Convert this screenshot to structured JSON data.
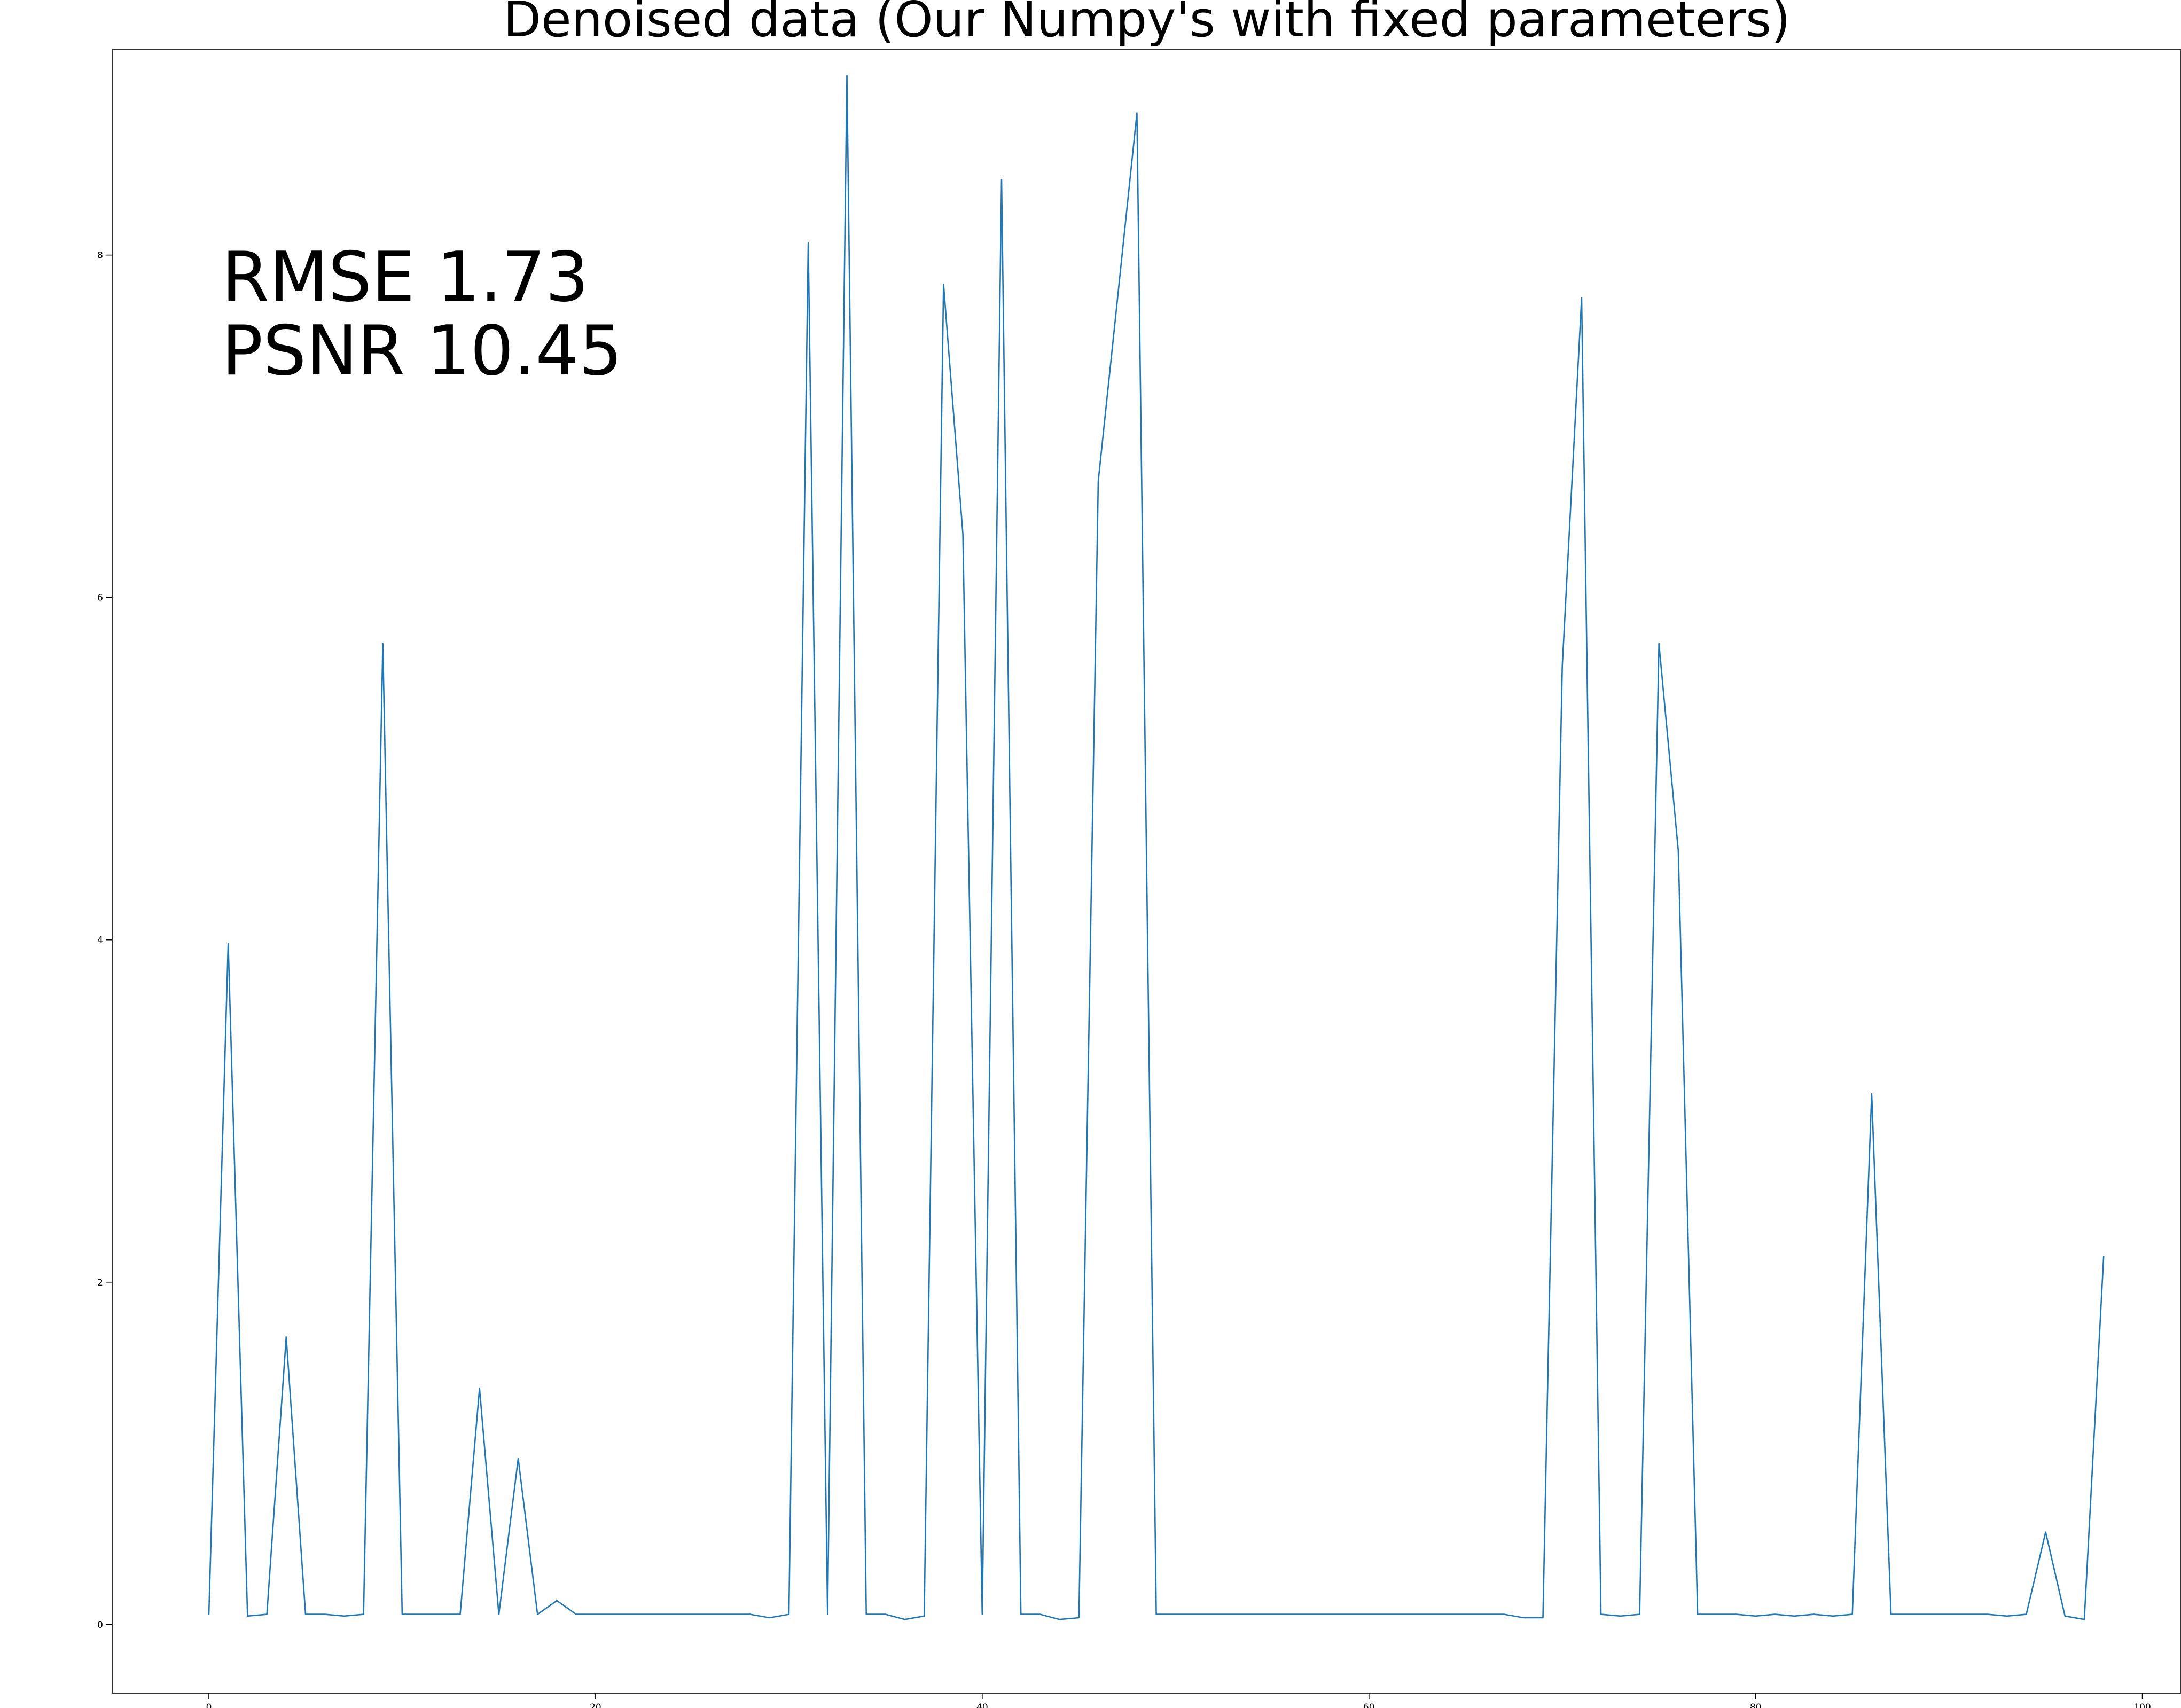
{
  "chart_data": {
    "type": "line",
    "title": "Denoised data (Our Numpy's with fixed parameters)",
    "xlabel": "",
    "ylabel": "",
    "xlim": [
      -5,
      102
    ],
    "ylim": [
      -0.4,
      9.2
    ],
    "xticks": [
      0,
      20,
      40,
      60,
      80,
      100
    ],
    "yticks": [
      0,
      2,
      4,
      6,
      8
    ],
    "grid": false,
    "legend": "none",
    "annotations": [
      {
        "text": "RMSE 1.73"
      },
      {
        "text": "PSNR 10.45"
      }
    ],
    "series": [
      {
        "color": "#1f77b4",
        "x": [
          0,
          1,
          2,
          3,
          4,
          5,
          6,
          7,
          8,
          9,
          10,
          11,
          12,
          13,
          14,
          15,
          16,
          17,
          18,
          19,
          20,
          21,
          22,
          23,
          24,
          25,
          26,
          27,
          28,
          29,
          30,
          31,
          32,
          33,
          34,
          35,
          36,
          37,
          38,
          39,
          40,
          41,
          42,
          43,
          44,
          45,
          46,
          47,
          48,
          49,
          50,
          51,
          52,
          53,
          54,
          55,
          56,
          57,
          58,
          59,
          60,
          61,
          62,
          63,
          64,
          65,
          66,
          67,
          68,
          69,
          70,
          71,
          72,
          73,
          74,
          75,
          76,
          77,
          78,
          79,
          80,
          81,
          82,
          83,
          84,
          85,
          86,
          87,
          88,
          89,
          90,
          91,
          92,
          93,
          94,
          95,
          96,
          97,
          98
        ],
        "y": [
          0.06,
          3.98,
          0.05,
          0.06,
          1.68,
          0.06,
          0.06,
          0.05,
          0.06,
          5.73,
          0.06,
          0.06,
          0.06,
          0.06,
          1.38,
          0.06,
          0.97,
          0.06,
          0.14,
          0.06,
          0.06,
          0.06,
          0.06,
          0.06,
          0.06,
          0.06,
          0.06,
          0.06,
          0.06,
          0.04,
          0.06,
          8.07,
          0.06,
          9.05,
          0.06,
          0.06,
          0.03,
          0.05,
          7.83,
          6.37,
          0.06,
          8.44,
          0.06,
          0.06,
          0.03,
          0.04,
          6.68,
          7.75,
          8.83,
          0.06,
          0.06,
          0.06,
          0.06,
          0.06,
          0.06,
          0.06,
          0.06,
          0.06,
          0.06,
          0.06,
          0.06,
          0.06,
          0.06,
          0.06,
          0.06,
          0.06,
          0.06,
          0.06,
          0.04,
          0.04,
          5.6,
          7.75,
          0.06,
          0.05,
          0.06,
          5.73,
          4.52,
          0.06,
          0.06,
          0.06,
          0.05,
          0.06,
          0.05,
          0.06,
          0.05,
          0.06,
          3.1,
          0.06,
          0.06,
          0.06,
          0.06,
          0.06,
          0.06,
          0.05,
          0.06,
          0.54,
          0.05,
          0.03,
          2.15
        ]
      }
    ]
  }
}
